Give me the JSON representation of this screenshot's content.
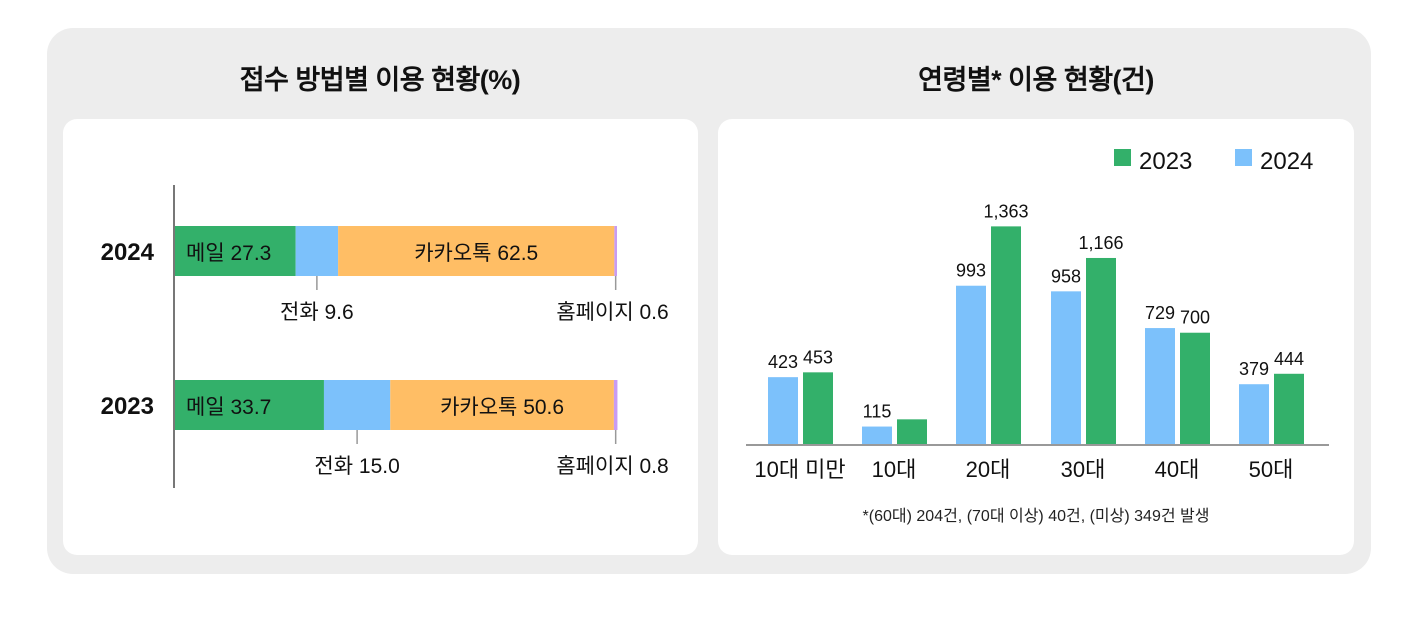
{
  "chart_data": [
    {
      "type": "bar",
      "orientation": "horizontal-stacked",
      "title": "접수 방법별 이용 현황(%)",
      "categories": [
        "2024",
        "2023"
      ],
      "series": [
        {
          "name": "메일",
          "values": [
            27.3,
            33.7
          ],
          "color": "#33b06a"
        },
        {
          "name": "전화",
          "values": [
            9.6,
            15.0
          ],
          "color": "#7cc1fb"
        },
        {
          "name": "카카오톡",
          "values": [
            62.5,
            50.6
          ],
          "color": "#ffbe65"
        },
        {
          "name": "홈페이지",
          "values": [
            0.6,
            0.8
          ],
          "color": "#c89cf2"
        }
      ],
      "labels": {
        "2024": {
          "mail": "메일 27.3",
          "phone": "전화 9.6",
          "kakao": "카카오톡 62.5",
          "web": "홈페이지 0.6"
        },
        "2023": {
          "mail": "메일 33.7",
          "phone": "전화 15.0",
          "kakao": "카카오톡 50.6",
          "web": "홈페이지 0.8"
        }
      }
    },
    {
      "type": "bar",
      "title": "연령별* 이용 현황(건)",
      "categories": [
        "10대 미만",
        "10대",
        "20대",
        "30대",
        "40대",
        "50대"
      ],
      "series": [
        {
          "name": "2024",
          "values": [
            423,
            115,
            993,
            958,
            729,
            379
          ],
          "color": "#7cc1fb",
          "labels": [
            "423",
            "115",
            "993",
            "958",
            "729",
            "379"
          ]
        },
        {
          "name": "2023",
          "values": [
            453,
            160,
            1363,
            1166,
            700,
            444
          ],
          "color": "#33b06a",
          "labels": [
            "453",
            "",
            "1,363",
            "1,166",
            "700",
            "444"
          ]
        }
      ],
      "legend": [
        "2023",
        "2024"
      ],
      "legend_position": "top-right",
      "ylim": [
        0,
        1400
      ],
      "footnote": "*(60대) 204건, (70대 이상) 40건, (미상) 349건 발생"
    }
  ]
}
